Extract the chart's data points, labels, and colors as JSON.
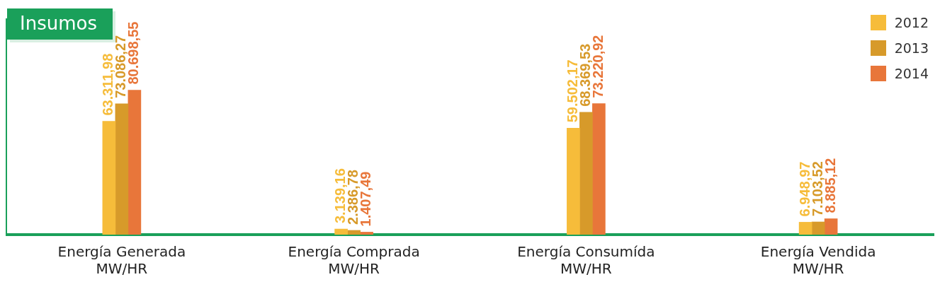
{
  "chart_data": {
    "type": "bar",
    "title": "Insumos",
    "categories": [
      "Energía Generada MW/HR",
      "Energía Comprada MW/HR",
      "Energía Consumída MW/HR",
      "Energía Vendida MW/HR"
    ],
    "series": [
      {
        "name": "2012",
        "color": "#f6bc3a",
        "values": [
          63311.98,
          3139.16,
          59502.17,
          6948.97
        ],
        "value_labels": [
          "63.311,98",
          "3.139,16",
          "59.502,17",
          "6.948,97"
        ]
      },
      {
        "name": "2013",
        "color": "#d79a2a",
        "values": [
          73086.27,
          2386.78,
          68369.53,
          7103.52
        ],
        "value_labels": [
          "73.086,27",
          "2.386,78",
          "68.369,53",
          "7.103,52"
        ]
      },
      {
        "name": "2014",
        "color": "#e8763a",
        "values": [
          80698.55,
          1407.49,
          73220.92,
          8885.12
        ],
        "value_labels": [
          "80.698,55",
          "1.407,49",
          "73.220,92",
          "8.885,12"
        ]
      }
    ],
    "legend": "top right",
    "grid": false
  }
}
